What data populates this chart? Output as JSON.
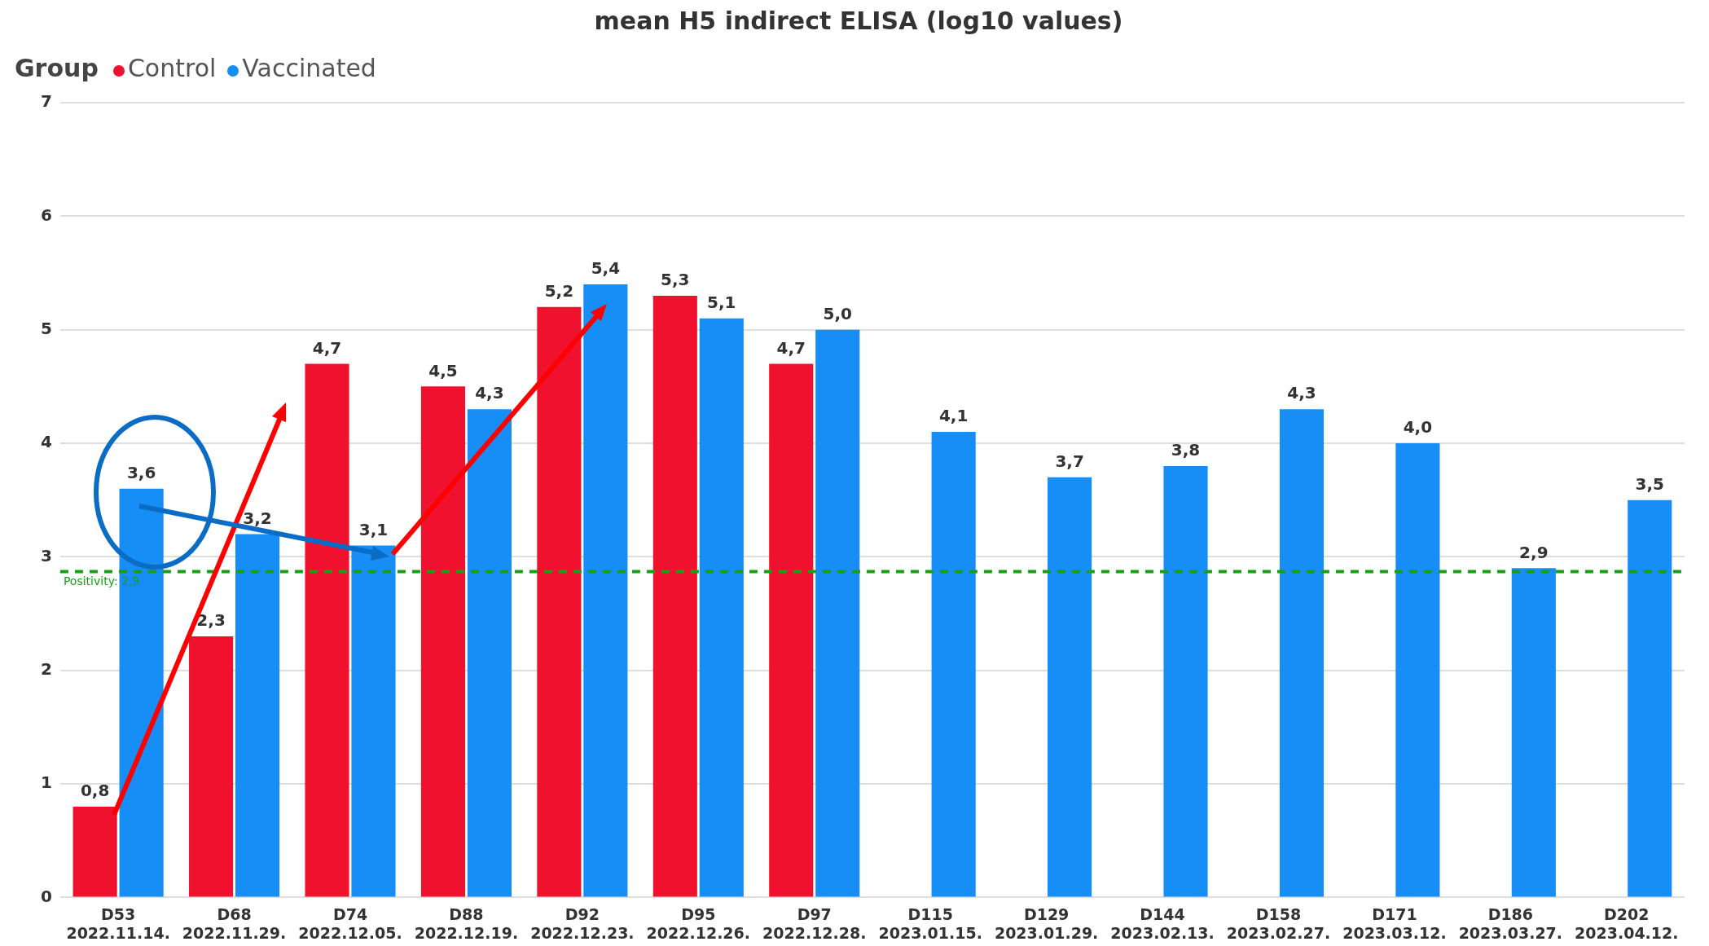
{
  "chart_data": {
    "type": "bar",
    "title": "mean H5 indirect ELISA (log10 values)",
    "legend_title": "Group",
    "legend": "top left",
    "categories": [
      "D53 2022.11.14.",
      "D68 2022.11.29.",
      "D74 2022.12.05.",
      "D88 2022.12.19.",
      "D92 2022.12.23.",
      "D95 2022.12.26.",
      "D97 2022.12.28.",
      "D115 2023.01.15.",
      "D129 2023.01.29.",
      "D144 2023.02.13.",
      "D158 2023.02.27.",
      "D171 2023.03.12.",
      "D186 2023.03.27.",
      "D202 2023.04.12."
    ],
    "series": [
      {
        "name": "Control",
        "color": "#f0112e",
        "values": [
          0.8,
          2.3,
          4.7,
          4.5,
          5.2,
          5.3,
          4.7,
          null,
          null,
          null,
          null,
          null,
          null,
          null
        ],
        "value_labels": [
          "0,8",
          "2,3",
          "4,7",
          "4,5",
          "5,2",
          "5,3",
          "4,7",
          null,
          null,
          null,
          null,
          null,
          null,
          null
        ]
      },
      {
        "name": "Vaccinated",
        "color": "#168ef5",
        "values": [
          3.6,
          3.2,
          3.1,
          4.3,
          5.4,
          5.1,
          5.0,
          4.1,
          3.7,
          3.8,
          4.3,
          4.0,
          2.9,
          3.5
        ],
        "value_labels": [
          "3,6",
          "3,2",
          "3,1",
          "4,3",
          "5,4",
          "5,1",
          "5,0",
          "4,1",
          "3,7",
          "3,8",
          "4,3",
          "4,0",
          "2,9",
          "3,5"
        ]
      }
    ],
    "ylim": [
      0,
      7
    ],
    "yticks": [
      0,
      1,
      2,
      3,
      4,
      5,
      6,
      7
    ],
    "grid": "y",
    "ref_lines": [
      {
        "axis": "y",
        "value": 2.87,
        "label": "Positivity: 2,9",
        "color": "#1a9e1a",
        "line_style": "dashed"
      }
    ]
  }
}
